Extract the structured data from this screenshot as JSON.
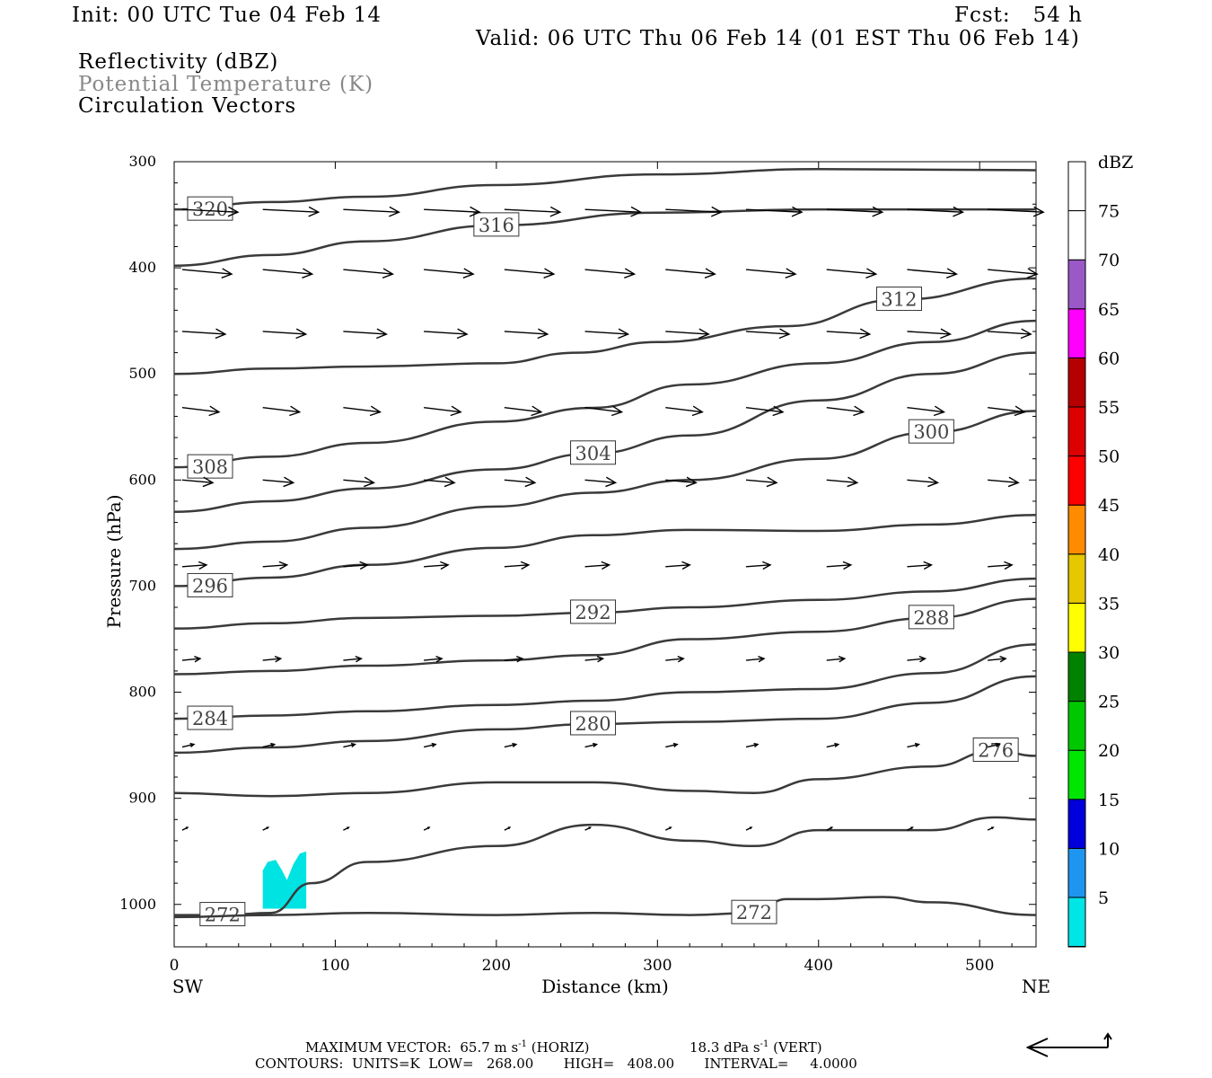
{
  "header": {
    "init": "Init: 00 UTC Tue 04 Feb 14",
    "fcst": "Fcst:   54 h",
    "valid": "Valid: 06 UTC Thu 06 Feb 14 (01 EST Thu 06 Feb 14)"
  },
  "fields": [
    "Reflectivity (dBZ)",
    "Potential Temperature (K)",
    "Circulation Vectors"
  ],
  "colors": {
    "contour": "#3a3a3a",
    "reflectivity_5": "#00e3e3",
    "field_gray": "#888888"
  },
  "chart_data": {
    "type": "line",
    "title": "",
    "xlabel": "Distance (km)",
    "ylabel": "Pressure (hPa)",
    "xlim": [
      0,
      535
    ],
    "ylim": [
      300,
      1040
    ],
    "x_ticks": [
      0,
      100,
      200,
      300,
      400,
      500
    ],
    "y_ticks": [
      300,
      400,
      500,
      600,
      700,
      800,
      900,
      1000
    ],
    "x_end_labels": {
      "left": "SW",
      "right": "NE"
    },
    "colorbar": {
      "unit": "dBZ",
      "levels": [
        5,
        10,
        15,
        20,
        25,
        30,
        35,
        40,
        45,
        50,
        55,
        60,
        65,
        70,
        75
      ],
      "colors": [
        "#00e5e5",
        "#1e96ef",
        "#0000dc",
        "#00e600",
        "#00c800",
        "#008200",
        "#ffff00",
        "#e6c800",
        "#ff8c00",
        "#ff0000",
        "#dc0000",
        "#b40000",
        "#ff00ff",
        "#9b59c8",
        "#ffffff"
      ]
    },
    "series": [
      {
        "name": "320",
        "x": [
          0,
          60,
          120,
          200,
          300,
          400,
          535
        ],
        "values": [
          345,
          338,
          333,
          322,
          312,
          307,
          308
        ]
      },
      {
        "name": "316",
        "x": [
          0,
          60,
          120,
          200,
          300,
          400,
          535
        ],
        "values": [
          398,
          388,
          375,
          360,
          348,
          345,
          345
        ]
      },
      {
        "name": "312",
        "x": [
          0,
          60,
          120,
          200,
          250,
          300,
          380,
          450,
          535
        ],
        "values": [
          500,
          495,
          493,
          490,
          480,
          470,
          455,
          430,
          410
        ]
      },
      {
        "name": "308",
        "x": [
          0,
          60,
          120,
          200,
          260,
          320,
          400,
          470,
          535
        ],
        "values": [
          588,
          578,
          565,
          545,
          532,
          510,
          490,
          470,
          450
        ]
      },
      {
        "name": "304",
        "x": [
          0,
          60,
          120,
          200,
          260,
          320,
          400,
          470,
          535
        ],
        "values": [
          630,
          620,
          608,
          590,
          575,
          558,
          525,
          500,
          480
        ]
      },
      {
        "name": "300",
        "x": [
          0,
          60,
          120,
          200,
          260,
          320,
          400,
          470,
          535
        ],
        "values": [
          665,
          658,
          645,
          625,
          612,
          600,
          580,
          555,
          535
        ]
      },
      {
        "name": "296",
        "x": [
          0,
          60,
          120,
          200,
          260,
          320,
          400,
          470,
          535
        ],
        "values": [
          700,
          692,
          680,
          664,
          652,
          647,
          648,
          642,
          633
        ]
      },
      {
        "name": "292",
        "x": [
          0,
          60,
          120,
          200,
          260,
          320,
          400,
          470,
          535
        ],
        "values": [
          740,
          735,
          730,
          728,
          725,
          720,
          713,
          705,
          693
        ]
      },
      {
        "name": "288",
        "x": [
          0,
          60,
          120,
          200,
          260,
          320,
          400,
          470,
          535
        ],
        "values": [
          783,
          780,
          775,
          770,
          765,
          750,
          743,
          730,
          712
        ]
      },
      {
        "name": "284",
        "x": [
          0,
          60,
          120,
          200,
          260,
          320,
          400,
          470,
          535
        ],
        "values": [
          825,
          822,
          818,
          812,
          808,
          800,
          797,
          782,
          755
        ]
      },
      {
        "name": "280",
        "x": [
          0,
          60,
          120,
          200,
          260,
          320,
          400,
          470,
          535
        ],
        "values": [
          857,
          852,
          846,
          835,
          830,
          828,
          825,
          810,
          785
        ]
      },
      {
        "name": "276",
        "x": [
          0,
          60,
          120,
          200,
          260,
          320,
          360,
          400,
          470,
          510,
          535
        ],
        "values": [
          895,
          898,
          895,
          885,
          885,
          893,
          895,
          882,
          870,
          855,
          860
        ]
      },
      {
        "name": "272",
        "x": [
          0,
          30,
          60,
          85,
          120,
          200,
          260,
          320,
          360,
          400,
          470,
          510,
          535
        ],
        "values": [
          1010,
          1010,
          1008,
          980,
          960,
          945,
          925,
          940,
          945,
          930,
          930,
          918,
          920
        ]
      },
      {
        "name": "272",
        "x": [
          0,
          60,
          120,
          200,
          260,
          320,
          360,
          380,
          400,
          440,
          470,
          535
        ],
        "values": [
          1012,
          1010,
          1008,
          1010,
          1008,
          1010,
          1008,
          995,
          995,
          993,
          998,
          1010
        ]
      }
    ],
    "vectors_rows_hPa": [
      345,
      400,
      460,
      530,
      600,
      680,
      770,
      850,
      930
    ]
  },
  "footer": {
    "max_vector": "MAXIMUM VECTOR:  65.7 m s",
    "max_vector_horiz": "(HORIZ)",
    "max_vector_vert": "18.3 dPa s",
    "max_vector_vert_unit": "(VERT)",
    "contours": "CONTOURS:  UNITS=K  LOW=   268.00       HIGH=   408.00       INTERVAL=     4.0000"
  }
}
